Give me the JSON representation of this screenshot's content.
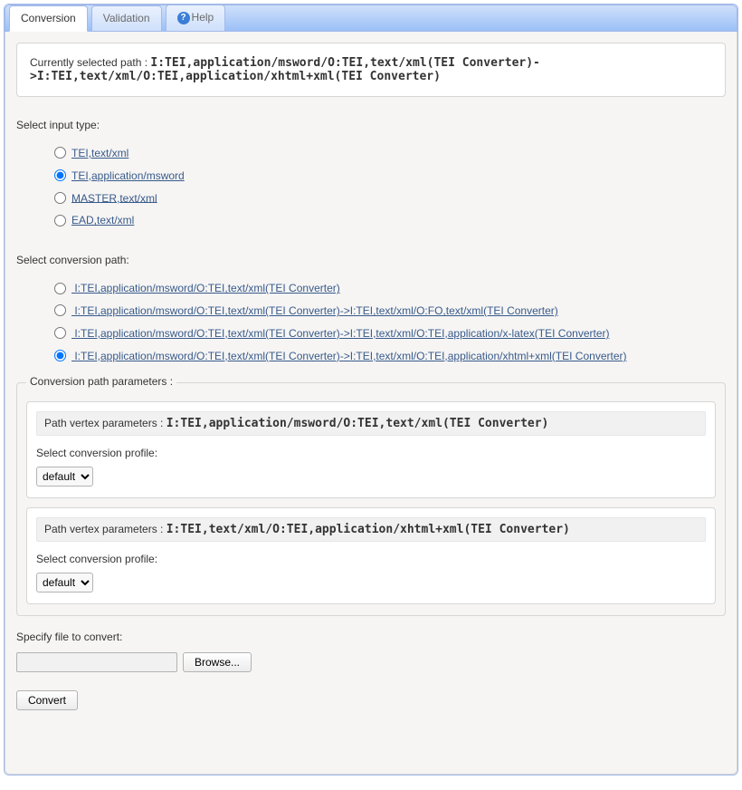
{
  "tabs": {
    "conversion": "Conversion",
    "validation": "Validation",
    "help": "Help"
  },
  "selected_path": {
    "label": "Currently selected path : ",
    "value": "I:TEI,application/msword/O:TEI,text/xml(TEI Converter)->I:TEI,text/xml/O:TEI,application/xhtml+xml(TEI Converter)"
  },
  "input_type": {
    "label": "Select input type:",
    "options": [
      {
        "id": "it0",
        "label": "TEI,text/xml",
        "checked": false
      },
      {
        "id": "it1",
        "label": "TEI,application/msword",
        "checked": true
      },
      {
        "id": "it2",
        "label": "MASTER,text/xml",
        "checked": false
      },
      {
        "id": "it3",
        "label": "EAD,text/xml",
        "checked": false
      }
    ]
  },
  "conversion_path": {
    "label": "Select conversion path:",
    "options": [
      {
        "id": "cp0",
        "label": " I:TEI,application/msword/O:TEI,text/xml(TEI Converter)",
        "checked": false
      },
      {
        "id": "cp1",
        "label": " I:TEI,application/msword/O:TEI,text/xml(TEI Converter)->I:TEI,text/xml/O:FO,text/xml(TEI Converter)",
        "checked": false
      },
      {
        "id": "cp2",
        "label": " I:TEI,application/msword/O:TEI,text/xml(TEI Converter)->I:TEI,text/xml/O:TEI,application/x-latex(TEI Converter)",
        "checked": false
      },
      {
        "id": "cp3",
        "label": " I:TEI,application/msword/O:TEI,text/xml(TEI Converter)->I:TEI,text/xml/O:TEI,application/xhtml+xml(TEI Converter)",
        "checked": true
      }
    ]
  },
  "params": {
    "legend": "Conversion path parameters :",
    "vertex_label": "Path vertex parameters : ",
    "profile_label": "Select conversion profile:",
    "vertices": [
      {
        "title": "I:TEI,application/msword/O:TEI,text/xml(TEI Converter)",
        "profile_selected": "default",
        "profile_options": [
          "default"
        ]
      },
      {
        "title": "I:TEI,text/xml/O:TEI,application/xhtml+xml(TEI Converter)",
        "profile_selected": "default",
        "profile_options": [
          "default"
        ]
      }
    ]
  },
  "file": {
    "label": "Specify file to convert:",
    "browse": "Browse...",
    "convert": "Convert"
  },
  "colors": {
    "tab_gradient_top": "#cfe0fb",
    "tab_gradient_bottom": "#9bc0f7",
    "border_blue": "#a3bae9",
    "panel_bg": "#f6f5f4",
    "link": "#385a8a"
  }
}
